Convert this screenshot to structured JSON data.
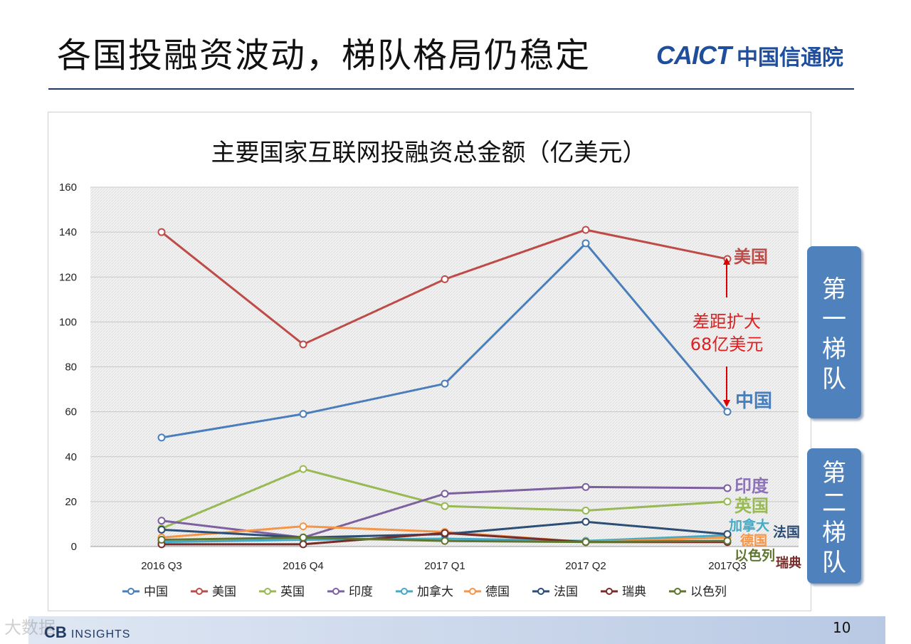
{
  "slide": {
    "title": "各国投融资波动，梯队格局仍稳定",
    "logo_en": "CAICT",
    "logo_cn": "中国信通院",
    "page_number": "10",
    "source_logo": "CB",
    "source_logo_sub": "INSIGHTS",
    "watermark": "大数据"
  },
  "tiers": [
    {
      "label": "第一梯队",
      "chars": [
        "第",
        "一",
        "梯",
        "队"
      ]
    },
    {
      "label": "第二梯队",
      "chars": [
        "第",
        "二",
        "梯",
        "队"
      ]
    }
  ],
  "annotation": {
    "lines": [
      "差距扩大",
      "68亿美元"
    ]
  },
  "chart_data": {
    "type": "line",
    "title": "主要国家互联网投融资总金额（亿美元）",
    "xlabel": "",
    "ylabel": "",
    "categories": [
      "2016 Q3",
      "2016 Q4",
      "2017 Q1",
      "2017 Q2",
      "2017Q3"
    ],
    "ylim": [
      0,
      160
    ],
    "yticks": [
      0,
      20,
      40,
      60,
      80,
      100,
      120,
      140,
      160
    ],
    "grid": true,
    "legend_position": "bottom",
    "series": [
      {
        "name": "中国",
        "color": "#4a7ebb",
        "values": [
          48.5,
          59,
          72.5,
          135,
          60
        ],
        "end_label": "中国",
        "end_label_color": "#4a7ebb"
      },
      {
        "name": "美国",
        "color": "#be4b48",
        "values": [
          140,
          90,
          119,
          141,
          128
        ],
        "end_label": "美国",
        "end_label_color": "#be4b48"
      },
      {
        "name": "英国",
        "color": "#98b954",
        "values": [
          8,
          34.5,
          18,
          16,
          20
        ],
        "end_label": "英国",
        "end_label_color": "#98b954"
      },
      {
        "name": "印度",
        "color": "#7d60a0",
        "values": [
          11.5,
          4,
          23.5,
          26.5,
          26
        ],
        "end_label": "印度",
        "end_label_color": "#8e72b8"
      },
      {
        "name": "加拿大",
        "color": "#46aac5",
        "values": [
          2,
          3,
          3.5,
          2.5,
          5
        ],
        "end_label": "加拿大",
        "end_label_color": "#46aac5"
      },
      {
        "name": "德国",
        "color": "#f69546",
        "values": [
          4,
          9,
          6.5,
          2,
          4
        ],
        "end_label": "德国",
        "end_label_color": "#f69546"
      },
      {
        "name": "法国",
        "color": "#2c4d75",
        "values": [
          7.5,
          4,
          5.5,
          11,
          5.5
        ],
        "end_label": "法国",
        "end_label_color": "#2c4d75"
      },
      {
        "name": "瑞典",
        "color": "#772c2a",
        "values": [
          1,
          1,
          6,
          2,
          2
        ],
        "end_label": "瑞典",
        "end_label_color": "#772c2a"
      },
      {
        "name": "以色列",
        "color": "#5f7530",
        "values": [
          3,
          4,
          2.5,
          2,
          2.5
        ],
        "end_label": "以色列",
        "end_label_color": "#5f7530"
      }
    ]
  }
}
